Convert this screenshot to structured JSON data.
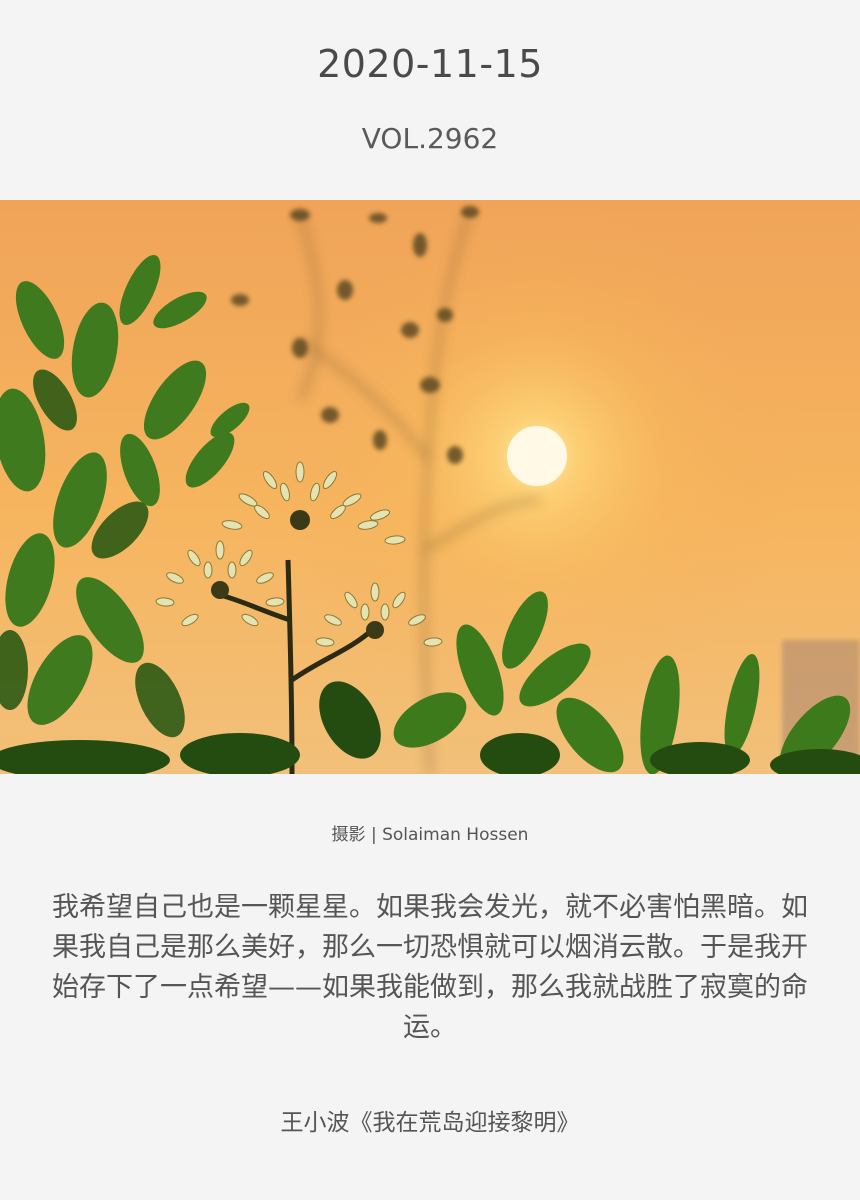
{
  "header": {
    "date": "2020-11-15",
    "volume": "VOL.2962"
  },
  "photo": {
    "subject": "sunset-plant-photo",
    "colors": {
      "sky_top": "#f4a85a",
      "sky_mid": "#f8b45e",
      "sun": "#fffbe8",
      "foliage": "#3f7a1f",
      "foliage_dark": "#1f3d10"
    }
  },
  "credit": "摄影 | Solaiman Hossen",
  "quote": "我希望自己也是一颗星星。如果我会发光，就不必害怕黑暗。如果我自己是那么美好，那么一切恐惧就可以烟消云散。于是我开始存下了一点希望——如果我能做到，那么我就战胜了寂寞的命运。",
  "source": "王小波《我在荒岛迎接黎明》"
}
